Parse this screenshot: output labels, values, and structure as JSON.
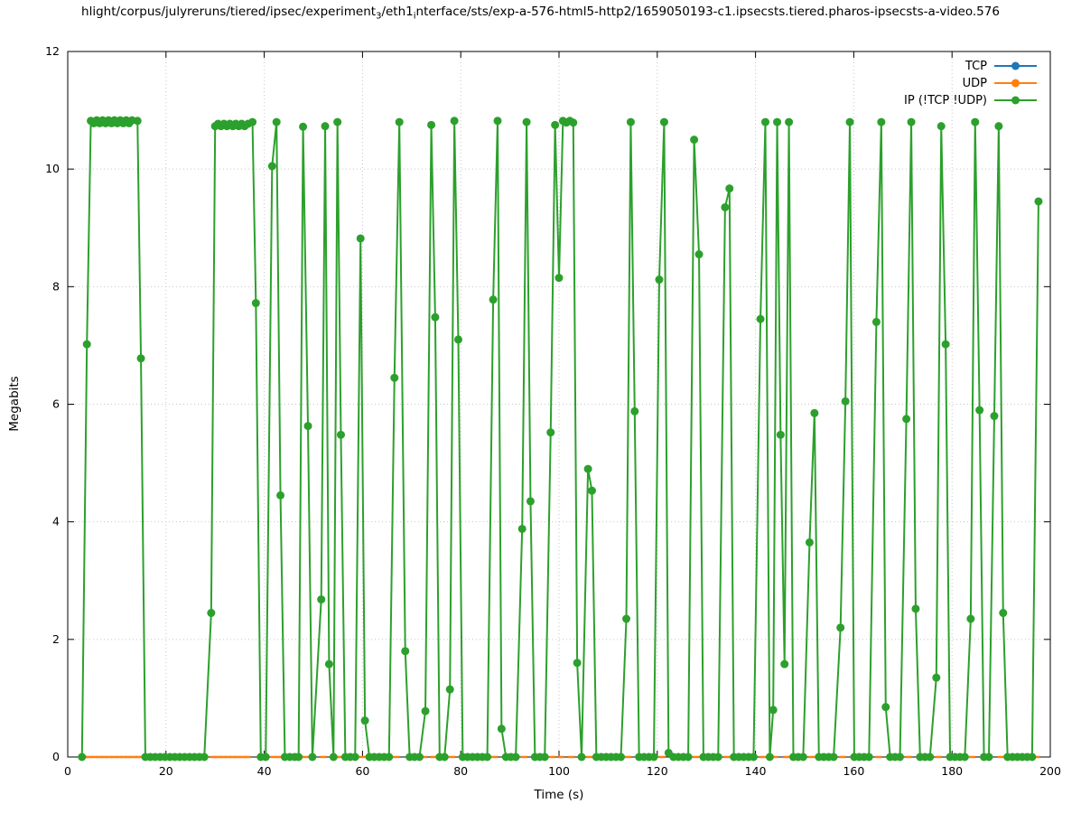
{
  "title": {
    "segments": [
      {
        "t": "hlight/corpus/julyreruns/tiered/ipsec/experiment"
      },
      {
        "sub": "3"
      },
      {
        "t": "/eth1"
      },
      {
        "sub": "i"
      },
      {
        "t": "nterface/sts/exp-a-576-html5-http2/1659050193-c1.ipsecsts.tiered.pharos-ipsecsts-a-video.576"
      }
    ]
  },
  "chart_data": {
    "type": "line",
    "title": "hlight/corpus/julyreruns/tiered/ipsec/experiment_3/eth1_interface/sts/exp-a-576-html5-http2/1659050193-c1.ipsecsts.tiered.pharos-ipsecsts-a-video.576",
    "xlabel": "Time (s)",
    "ylabel": "Megabits",
    "xlim": [
      0,
      200
    ],
    "ylim": [
      0,
      12
    ],
    "xticks": [
      0,
      20,
      40,
      60,
      80,
      100,
      120,
      140,
      160,
      180,
      200
    ],
    "yticks": [
      0,
      2,
      4,
      6,
      8,
      10,
      12
    ],
    "grid": true,
    "legend_position": "top-right",
    "series": [
      {
        "name": "TCP",
        "color": "#1f77b4",
        "line": true,
        "marker": "circle",
        "marker_size": 3,
        "points": []
      },
      {
        "name": "UDP",
        "color": "#ff7f0e",
        "line": false,
        "marker": "dash",
        "marker_size": 2.5,
        "points": [
          [
            3.4,
            0
          ],
          [
            4.4,
            0
          ],
          [
            5.4,
            0
          ],
          [
            6.4,
            0
          ],
          [
            7.4,
            0
          ],
          [
            8.4,
            0
          ],
          [
            9.4,
            0
          ],
          [
            10.4,
            0
          ],
          [
            11.4,
            0
          ],
          [
            12.4,
            0
          ],
          [
            13.4,
            0
          ],
          [
            14.4,
            0
          ],
          [
            15.4,
            0
          ],
          [
            29.6,
            0
          ],
          [
            30.6,
            0
          ],
          [
            31.6,
            0
          ],
          [
            32.6,
            0
          ],
          [
            33.6,
            0
          ],
          [
            34.6,
            0
          ],
          [
            35.6,
            0
          ],
          [
            36.6,
            0
          ],
          [
            41.9,
            0
          ],
          [
            42.9,
            0
          ],
          [
            48.3,
            0
          ],
          [
            52,
            0
          ],
          [
            55.2,
            0
          ],
          [
            59.9,
            0
          ],
          [
            66.9,
            0
          ],
          [
            72.5,
            0
          ],
          [
            74.4,
            0
          ],
          [
            78.2,
            0
          ],
          [
            86.9,
            0
          ],
          [
            92.9,
            0
          ],
          [
            98.7,
            0
          ],
          [
            100.4,
            0
          ],
          [
            102.5,
            0
          ],
          [
            106.2,
            0
          ],
          [
            114.1,
            0
          ],
          [
            120.9,
            0
          ],
          [
            127.9,
            0
          ],
          [
            134.2,
            0
          ],
          [
            141.4,
            0
          ],
          [
            144,
            0
          ],
          [
            146.3,
            0
          ],
          [
            151.4,
            0
          ],
          [
            157.7,
            0
          ],
          [
            165,
            0
          ],
          [
            171.1,
            0
          ],
          [
            177.2,
            0
          ],
          [
            184.1,
            0
          ],
          [
            189.9,
            0
          ],
          [
            197.3,
            0
          ]
        ]
      },
      {
        "name": "IP (!TCP !UDP)",
        "color": "#2ca02c",
        "line": true,
        "marker": "circle",
        "marker_size": 4.5,
        "points": [
          [
            2.9,
            0
          ],
          [
            3.9,
            7.02
          ],
          [
            4.7,
            10.82
          ],
          [
            5.3,
            10.78
          ],
          [
            5.9,
            10.83
          ],
          [
            6.5,
            10.78
          ],
          [
            7.1,
            10.83
          ],
          [
            7.7,
            10.78
          ],
          [
            8.3,
            10.83
          ],
          [
            8.9,
            10.78
          ],
          [
            9.5,
            10.83
          ],
          [
            10.1,
            10.78
          ],
          [
            10.7,
            10.83
          ],
          [
            11.3,
            10.78
          ],
          [
            11.9,
            10.83
          ],
          [
            12.5,
            10.78
          ],
          [
            13.1,
            10.83
          ],
          [
            14.2,
            10.82
          ],
          [
            14.9,
            6.78
          ],
          [
            15.8,
            0
          ],
          [
            16.8,
            0
          ],
          [
            17.8,
            0
          ],
          [
            18.8,
            0
          ],
          [
            19.8,
            0
          ],
          [
            20.8,
            0
          ],
          [
            21.8,
            0
          ],
          [
            22.8,
            0
          ],
          [
            23.8,
            0
          ],
          [
            24.8,
            0
          ],
          [
            25.8,
            0
          ],
          [
            26.8,
            0
          ],
          [
            27.8,
            0
          ],
          [
            29.2,
            2.45
          ],
          [
            30,
            10.73
          ],
          [
            30.6,
            10.77
          ],
          [
            31.2,
            10.73
          ],
          [
            31.8,
            10.77
          ],
          [
            32.4,
            10.73
          ],
          [
            33,
            10.77
          ],
          [
            33.6,
            10.73
          ],
          [
            34.2,
            10.77
          ],
          [
            34.8,
            10.73
          ],
          [
            35.4,
            10.77
          ],
          [
            36,
            10.73
          ],
          [
            36.7,
            10.77
          ],
          [
            37.6,
            10.8
          ],
          [
            38.3,
            7.72
          ],
          [
            39.3,
            0
          ],
          [
            40.3,
            0
          ],
          [
            41.6,
            10.05
          ],
          [
            42.5,
            10.8
          ],
          [
            43.3,
            4.45
          ],
          [
            44.2,
            0
          ],
          [
            45.2,
            0
          ],
          [
            46.2,
            0
          ],
          [
            47,
            0
          ],
          [
            47.9,
            10.72
          ],
          [
            48.9,
            5.63
          ],
          [
            49.8,
            0
          ],
          [
            51.6,
            2.68
          ],
          [
            52.4,
            10.73
          ],
          [
            53.2,
            1.58
          ],
          [
            54.1,
            0
          ],
          [
            54.9,
            10.8
          ],
          [
            55.6,
            5.48
          ],
          [
            56.5,
            0
          ],
          [
            57.5,
            0
          ],
          [
            58.5,
            0
          ],
          [
            59.6,
            8.82
          ],
          [
            60.5,
            0.62
          ],
          [
            61.4,
            0
          ],
          [
            62.4,
            0
          ],
          [
            63.4,
            0
          ],
          [
            64.4,
            0
          ],
          [
            65.4,
            0
          ],
          [
            66.5,
            6.45
          ],
          [
            67.5,
            10.8
          ],
          [
            68.7,
            1.8
          ],
          [
            69.6,
            0
          ],
          [
            70.6,
            0
          ],
          [
            71.6,
            0
          ],
          [
            72.8,
            0.78
          ],
          [
            74,
            10.75
          ],
          [
            74.8,
            7.48
          ],
          [
            75.7,
            0
          ],
          [
            76.7,
            0
          ],
          [
            77.8,
            1.15
          ],
          [
            78.7,
            10.82
          ],
          [
            79.5,
            7.1
          ],
          [
            80.4,
            0
          ],
          [
            81.4,
            0
          ],
          [
            82.4,
            0
          ],
          [
            83.4,
            0
          ],
          [
            84.4,
            0
          ],
          [
            85.4,
            0
          ],
          [
            86.6,
            7.78
          ],
          [
            87.5,
            10.82
          ],
          [
            88.3,
            0.48
          ],
          [
            89.2,
            0
          ],
          [
            90.2,
            0
          ],
          [
            91.2,
            0
          ],
          [
            92.5,
            3.88
          ],
          [
            93.4,
            10.8
          ],
          [
            94.2,
            4.35
          ],
          [
            95.1,
            0
          ],
          [
            96.1,
            0
          ],
          [
            97.1,
            0
          ],
          [
            98.3,
            5.52
          ],
          [
            99.2,
            10.75
          ],
          [
            100,
            8.15
          ],
          [
            100.8,
            10.82
          ],
          [
            101.5,
            10.79
          ],
          [
            102.2,
            10.82
          ],
          [
            102.9,
            10.79
          ],
          [
            103.7,
            1.6
          ],
          [
            104.6,
            0
          ],
          [
            105.9,
            4.9
          ],
          [
            106.7,
            4.53
          ],
          [
            107.6,
            0
          ],
          [
            108.6,
            0
          ],
          [
            109.6,
            0
          ],
          [
            110.6,
            0
          ],
          [
            111.6,
            0
          ],
          [
            112.6,
            0
          ],
          [
            113.7,
            2.35
          ],
          [
            114.6,
            10.8
          ],
          [
            115.4,
            5.88
          ],
          [
            116.3,
            0
          ],
          [
            117.3,
            0
          ],
          [
            118.3,
            0
          ],
          [
            119.3,
            0
          ],
          [
            120.4,
            8.12
          ],
          [
            121.4,
            10.8
          ],
          [
            122.3,
            0.07
          ],
          [
            123.3,
            0
          ],
          [
            124.3,
            0
          ],
          [
            125.3,
            0
          ],
          [
            126.3,
            0
          ],
          [
            127.5,
            10.5
          ],
          [
            128.5,
            8.55
          ],
          [
            129.4,
            0
          ],
          [
            130.4,
            0
          ],
          [
            131.4,
            0
          ],
          [
            132.4,
            0
          ],
          [
            133.8,
            9.35
          ],
          [
            134.7,
            9.67
          ],
          [
            135.6,
            0
          ],
          [
            136.6,
            0
          ],
          [
            137.6,
            0
          ],
          [
            138.6,
            0
          ],
          [
            139.6,
            0
          ],
          [
            141,
            7.45
          ],
          [
            142,
            10.8
          ],
          [
            142.9,
            0
          ],
          [
            143.6,
            0.8
          ],
          [
            144.4,
            10.8
          ],
          [
            145.1,
            5.48
          ],
          [
            145.9,
            1.58
          ],
          [
            146.8,
            10.8
          ],
          [
            147.7,
            0
          ],
          [
            148.7,
            0
          ],
          [
            149.7,
            0
          ],
          [
            151,
            3.65
          ],
          [
            152,
            5.85
          ],
          [
            152.9,
            0
          ],
          [
            153.9,
            0
          ],
          [
            154.9,
            0
          ],
          [
            155.9,
            0
          ],
          [
            157.3,
            2.2
          ],
          [
            158.3,
            6.05
          ],
          [
            159.2,
            10.8
          ],
          [
            160.1,
            0
          ],
          [
            161.1,
            0
          ],
          [
            162.1,
            0
          ],
          [
            163.1,
            0
          ],
          [
            164.6,
            7.4
          ],
          [
            165.6,
            10.8
          ],
          [
            166.5,
            0.85
          ],
          [
            167.4,
            0
          ],
          [
            168.4,
            0
          ],
          [
            169.4,
            0
          ],
          [
            170.7,
            5.75
          ],
          [
            171.7,
            10.8
          ],
          [
            172.6,
            2.52
          ],
          [
            173.5,
            0
          ],
          [
            174.5,
            0
          ],
          [
            175.5,
            0
          ],
          [
            176.8,
            1.35
          ],
          [
            177.8,
            10.73
          ],
          [
            178.7,
            7.02
          ],
          [
            179.6,
            0
          ],
          [
            180.6,
            0
          ],
          [
            181.6,
            0
          ],
          [
            182.6,
            0
          ],
          [
            183.8,
            2.35
          ],
          [
            184.7,
            10.8
          ],
          [
            185.6,
            5.9
          ],
          [
            186.5,
            0
          ],
          [
            187.5,
            0
          ],
          [
            188.6,
            5.8
          ],
          [
            189.5,
            10.73
          ],
          [
            190.4,
            2.45
          ],
          [
            191.3,
            0
          ],
          [
            192.3,
            0
          ],
          [
            193.3,
            0
          ],
          [
            194.3,
            0
          ],
          [
            195.3,
            0
          ],
          [
            196.3,
            0
          ],
          [
            197.6,
            9.45
          ]
        ]
      }
    ]
  }
}
